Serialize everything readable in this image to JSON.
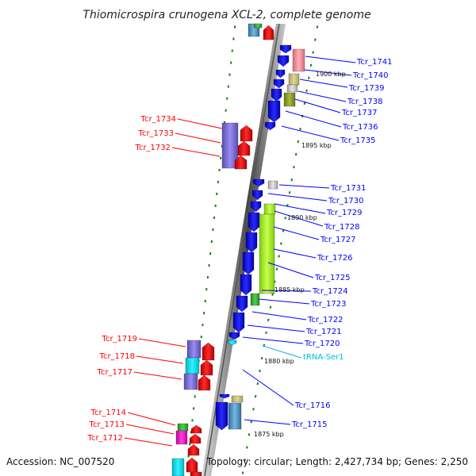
{
  "title": "Thiomicrospira crunogena XCL-2, complete genome",
  "footer": {
    "accession": "Accession: NC_007520",
    "topology": "Topology: circular; Length: 2,427,734 bp; Genes: 2,250"
  },
  "colors": {
    "blue": "#0000ff",
    "red": "#ff0000",
    "trna": "#00c0ff",
    "axis": "#888888"
  },
  "scale_labels": [
    "1900 kbp",
    "1895 kbp",
    "1890 kbp",
    "1885 kbp",
    "1880 kbp",
    "1875 kbp"
  ],
  "right_labels": [
    {
      "text": "Tcr_1741",
      "kind": "gene"
    },
    {
      "text": "Tcr_1740",
      "kind": "gene"
    },
    {
      "text": "Tcr_1739",
      "kind": "gene"
    },
    {
      "text": "Tcr_1738",
      "kind": "gene"
    },
    {
      "text": "Tcr_1737",
      "kind": "gene"
    },
    {
      "text": "Tcr_1736",
      "kind": "gene"
    },
    {
      "text": "Tcr_1735",
      "kind": "gene"
    },
    {
      "text": "Tcr_1731",
      "kind": "gene"
    },
    {
      "text": "Tcr_1730",
      "kind": "gene"
    },
    {
      "text": "Tcr_1729",
      "kind": "gene"
    },
    {
      "text": "Tcr_1728",
      "kind": "gene"
    },
    {
      "text": "Tcr_1727",
      "kind": "gene"
    },
    {
      "text": "Tcr_1726",
      "kind": "gene"
    },
    {
      "text": "Tcr_1725",
      "kind": "gene"
    },
    {
      "text": "Tcr_1724",
      "kind": "gene"
    },
    {
      "text": "Tcr_1723",
      "kind": "gene"
    },
    {
      "text": "Tcr_1722",
      "kind": "gene"
    },
    {
      "text": "Tcr_1721",
      "kind": "gene"
    },
    {
      "text": "Tcr_1720",
      "kind": "gene"
    },
    {
      "text": "tRNA-Ser1",
      "kind": "trna"
    },
    {
      "text": "Tcr_1716",
      "kind": "gene"
    },
    {
      "text": "Tcr_1715",
      "kind": "gene"
    }
  ],
  "left_labels": [
    {
      "text": "Tcr_1734"
    },
    {
      "text": "Tcr_1733"
    },
    {
      "text": "Tcr_1732"
    },
    {
      "text": "Tcr_1719"
    },
    {
      "text": "Tcr_1718"
    },
    {
      "text": "Tcr_1717"
    },
    {
      "text": "Tcr_1714"
    },
    {
      "text": "Tcr_1713"
    },
    {
      "text": "Tcr_1712"
    }
  ]
}
